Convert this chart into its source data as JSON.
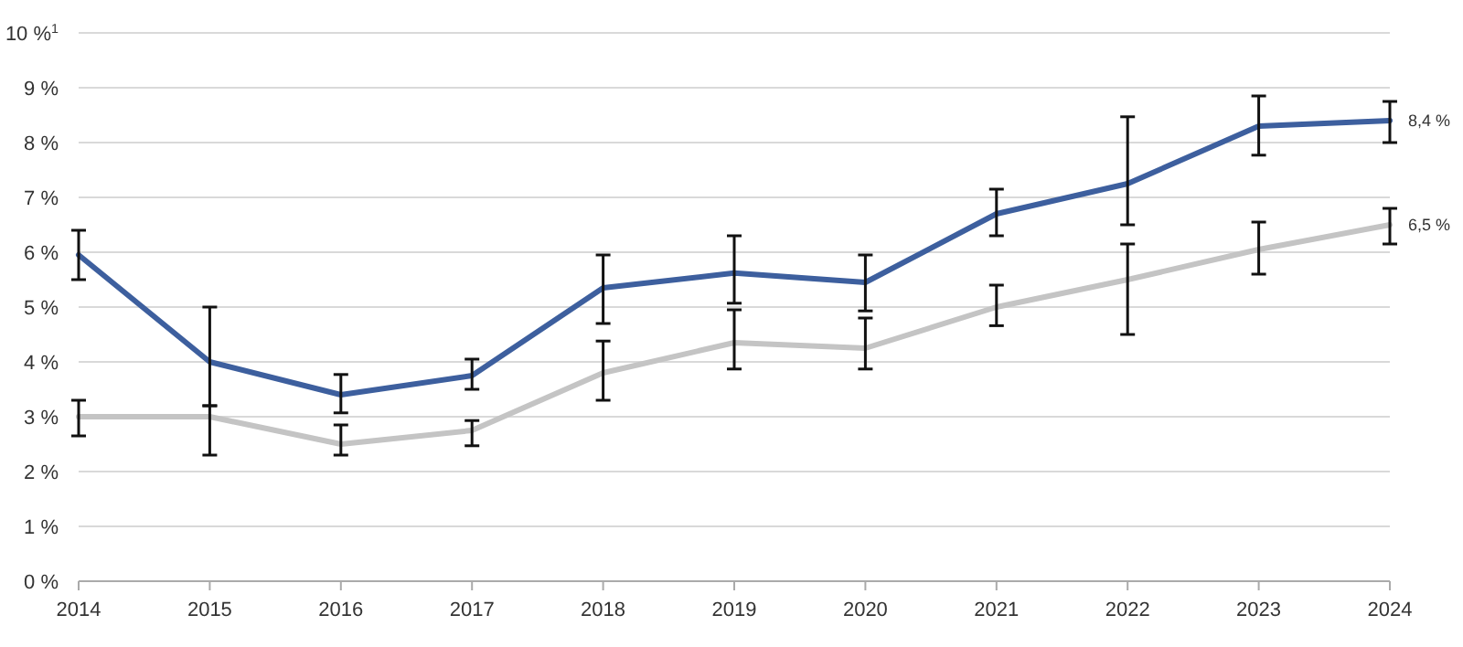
{
  "chart_data": {
    "type": "line",
    "categories": [
      "2014",
      "2015",
      "2016",
      "2017",
      "2018",
      "2019",
      "2020",
      "2021",
      "2022",
      "2023",
      "2024"
    ],
    "ylim": [
      0,
      10
    ],
    "yticks": [
      {
        "value": 0,
        "label": "0 %"
      },
      {
        "value": 1,
        "label": "1 %"
      },
      {
        "value": 2,
        "label": "2 %"
      },
      {
        "value": 3,
        "label": "3 %"
      },
      {
        "value": 4,
        "label": "4 %"
      },
      {
        "value": 5,
        "label": "5 %"
      },
      {
        "value": 6,
        "label": "6 %"
      },
      {
        "value": 7,
        "label": "7 %"
      },
      {
        "value": 8,
        "label": "8 %"
      },
      {
        "value": 9,
        "label": "9 %"
      },
      {
        "value": 10,
        "label": "10 %$^{1}$"
      }
    ],
    "grid": "y",
    "marker": "none",
    "line_style": "solid",
    "series": [
      {
        "color": "#c4c4c4",
        "values": [
          3.0,
          3.0,
          2.5,
          2.75,
          3.8,
          4.35,
          4.25,
          5.0,
          5.5,
          6.05,
          6.5
        ],
        "errors": [
          [
            2.65,
            3.3
          ],
          [
            2.3,
            3.2
          ],
          [
            2.3,
            2.85
          ],
          [
            2.47,
            2.93
          ],
          [
            3.3,
            4.38
          ],
          [
            3.87,
            4.95
          ],
          [
            3.87,
            4.8
          ],
          [
            4.66,
            5.4
          ],
          [
            4.5,
            6.15
          ],
          [
            5.6,
            6.55
          ],
          [
            6.15,
            6.8
          ]
        ],
        "value_labels": [
          null,
          null,
          null,
          null,
          null,
          null,
          null,
          null,
          null,
          null,
          "6,5 %"
        ]
      },
      {
        "color": "#3d5f9e",
        "values": [
          5.95,
          4.0,
          3.4,
          3.75,
          5.35,
          5.62,
          5.45,
          6.7,
          7.25,
          8.3,
          8.4
        ],
        "errors": [
          [
            5.5,
            6.4
          ],
          [
            3.2,
            5.0
          ],
          [
            3.07,
            3.77
          ],
          [
            3.5,
            4.05
          ],
          [
            4.7,
            5.95
          ],
          [
            5.07,
            6.3
          ],
          [
            4.93,
            5.95
          ],
          [
            6.3,
            7.15
          ],
          [
            6.5,
            8.47
          ],
          [
            7.77,
            8.85
          ],
          [
            8.0,
            8.75
          ]
        ],
        "value_labels": [
          null,
          null,
          null,
          null,
          null,
          null,
          null,
          null,
          null,
          null,
          "8,4 %"
        ]
      }
    ]
  }
}
